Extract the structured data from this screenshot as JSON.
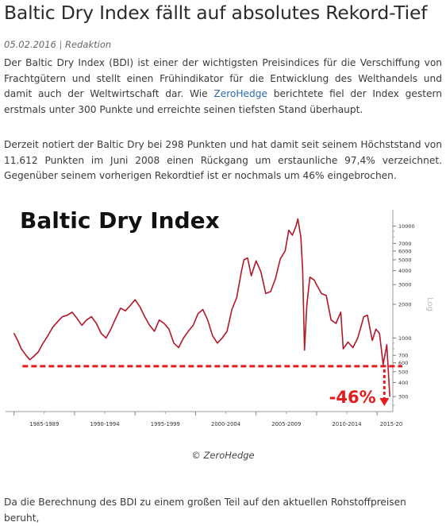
{
  "article": {
    "title": "Baltic Dry Index fällt auf absolutes Rekord-Tief",
    "date": "05.02.2016",
    "separator": "|",
    "author": "Redaktion",
    "p1_before": "Der Baltic Dry Index (BDI) ist einer der wichtigsten Preisindices für die Verschiffung von Frachtgütern und stellt einen Frühindikator für die Entwicklung des Welthandels und damit auch der Weltwirtschaft dar. Wie ",
    "p1_link": "ZeroHedge",
    "p1_after": " berichtete fiel der Index gestern erstmals unter 300 Punkte und erreichte seinen tiefsten Stand überhaupt.",
    "p2": "Derzeit notiert der Baltic Dry bei 298 Punkten und hat damit seit seinem Höchststand von 11.612 Punkten im Juni 2008 einen Rückgang um erstaunliche 97,4% verzeichnet. Gegenüber seinem vorherigen Rekordtief ist er nochmals um 46% eingebrochen.",
    "caption": "© ZeroHedge",
    "p3": "Da die Berechnung des BDI zu einem großen Teil auf den aktuellen Rohstoffpreisen beruht,"
  },
  "colors": {
    "line": "#b3172a",
    "annotation": "#e31b1b",
    "link": "#2a6ab0"
  },
  "chart_data": {
    "type": "line",
    "title": "Baltic Dry Index",
    "scale": "log",
    "ylabel": "Log",
    "ylim": [
      220,
      14000
    ],
    "y_ticks": [
      300,
      400,
      500,
      600,
      700,
      1000,
      2000,
      3000,
      4000,
      5000,
      6000,
      7000,
      10000
    ],
    "x_tick_labels": [
      "1985-1989",
      "1990-1994",
      "1995-1999",
      "2000-2004",
      "2005-2009",
      "2010-2014",
      "2015-20"
    ],
    "xlim": [
      1984.3,
      2016.3
    ],
    "reference_level": 560,
    "annotation": "-46%",
    "series": [
      {
        "x": [
          1985.0,
          1985.3,
          1985.6,
          1986.0,
          1986.3,
          1986.6,
          1987.0,
          1987.4,
          1987.8,
          1988.2,
          1988.6,
          1989.0,
          1989.4,
          1989.8,
          1990.2,
          1990.6,
          1991.0,
          1991.4,
          1991.8,
          1992.2,
          1992.6,
          1993.0,
          1993.4,
          1993.8,
          1994.2,
          1994.6,
          1995.0,
          1995.4,
          1995.8,
          1996.2,
          1996.6,
          1997.0,
          1997.4,
          1997.8,
          1998.2,
          1998.6,
          1999.0,
          1999.4,
          1999.8,
          2000.2,
          2000.6,
          2001.0,
          2001.4,
          2001.8,
          2002.2,
          2002.6,
          2003.0,
          2003.4,
          2003.8,
          2004.0,
          2004.3,
          2004.6,
          2005.0,
          2005.4,
          2005.8,
          2006.2,
          2006.6,
          2007.0,
          2007.4,
          2007.7,
          2008.0,
          2008.3,
          2008.45,
          2008.7,
          2008.85,
          2009.0,
          2009.2,
          2009.45,
          2009.8,
          2010.0,
          2010.4,
          2010.8,
          2011.2,
          2011.6,
          2012.0,
          2012.2,
          2012.6,
          2013.0,
          2013.4,
          2013.9,
          2014.2,
          2014.6,
          2014.9,
          2015.2,
          2015.5,
          2015.8,
          2016.05
        ],
        "y": [
          1100,
          950,
          800,
          700,
          640,
          680,
          750,
          900,
          1050,
          1250,
          1400,
          1550,
          1600,
          1700,
          1500,
          1300,
          1450,
          1550,
          1350,
          1100,
          1000,
          1200,
          1500,
          1850,
          1750,
          1950,
          2200,
          1900,
          1550,
          1300,
          1150,
          1450,
          1350,
          1200,
          900,
          820,
          1000,
          1150,
          1300,
          1650,
          1800,
          1450,
          1050,
          900,
          1000,
          1150,
          1800,
          2300,
          4000,
          5000,
          5200,
          3600,
          4900,
          3900,
          2500,
          2600,
          3400,
          5100,
          6000,
          9200,
          8300,
          10000,
          11600,
          8000,
          4000,
          780,
          2000,
          3500,
          3300,
          3000,
          2500,
          2400,
          1450,
          1350,
          1700,
          800,
          920,
          820,
          1000,
          1550,
          1600,
          950,
          1200,
          1100,
          580,
          870,
          300
        ]
      }
    ]
  }
}
